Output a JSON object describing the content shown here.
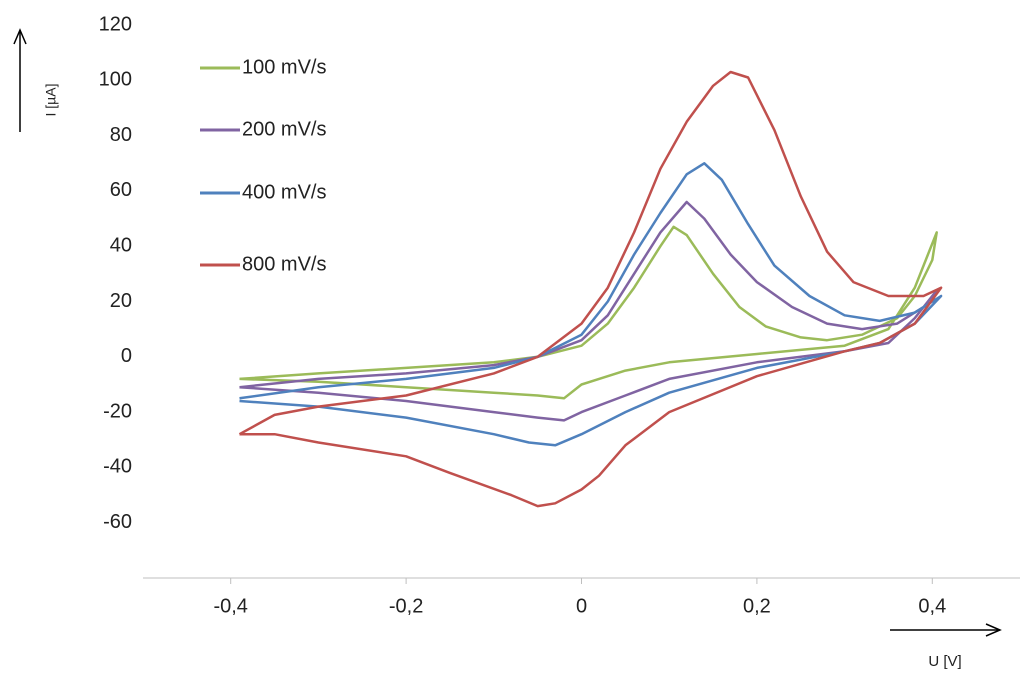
{
  "chart_data": {
    "type": "line",
    "x_label": "U [V]",
    "y_label": "I [µA]",
    "xlim": [
      -0.5,
      0.5
    ],
    "xticks": [
      {
        "value": -0.4,
        "label": "-0,4"
      },
      {
        "value": -0.2,
        "label": "-0,2"
      },
      0,
      {
        "value": 0.2,
        "label": "0,2"
      },
      {
        "value": 0.4,
        "label": "0,4"
      }
    ],
    "ylim": [
      -80,
      120
    ],
    "yticks": [
      -60,
      -40,
      -20,
      0,
      20,
      40,
      60,
      80,
      100,
      120
    ],
    "legend": "upper left",
    "series": [
      {
        "name": "100 mV/s",
        "color": "#9bbb59",
        "x": [
          -0.39,
          -0.3,
          -0.2,
          -0.1,
          -0.05,
          0,
          0.03,
          0.06,
          0.09,
          0.105,
          0.12,
          0.15,
          0.18,
          0.21,
          0.25,
          0.28,
          0.32,
          0.36,
          0.38,
          0.4,
          0.405,
          0.38,
          0.35,
          0.3,
          0.2,
          0.1,
          0.05,
          0,
          -0.02,
          -0.05,
          -0.1,
          -0.2,
          -0.3,
          -0.39
        ],
        "values": [
          -8,
          -6,
          -4,
          -2,
          0,
          4,
          12,
          25,
          40,
          47,
          44,
          30,
          18,
          11,
          7,
          6,
          8,
          14,
          22,
          35,
          45,
          25,
          10,
          4,
          1,
          -2,
          -5,
          -10,
          -15,
          -14,
          -13,
          -11,
          -9,
          -8
        ]
      },
      {
        "name": "200 mV/s",
        "color": "#8064a2",
        "x": [
          -0.39,
          -0.3,
          -0.2,
          -0.1,
          -0.05,
          0,
          0.03,
          0.06,
          0.09,
          0.12,
          0.14,
          0.17,
          0.2,
          0.24,
          0.28,
          0.32,
          0.36,
          0.4,
          0.405,
          0.38,
          0.35,
          0.3,
          0.2,
          0.1,
          0.05,
          0,
          -0.02,
          -0.05,
          -0.1,
          -0.2,
          -0.3,
          -0.39
        ],
        "values": [
          -11,
          -8,
          -6,
          -3,
          0,
          6,
          15,
          30,
          45,
          56,
          50,
          37,
          27,
          18,
          12,
          10,
          12,
          20,
          24,
          14,
          5,
          2,
          -2,
          -8,
          -14,
          -20,
          -23,
          -22,
          -20,
          -16,
          -13,
          -11
        ]
      },
      {
        "name": "400 mV/s",
        "color": "#4f81bd",
        "x": [
          -0.39,
          -0.3,
          -0.2,
          -0.1,
          -0.05,
          0,
          0.03,
          0.06,
          0.09,
          0.12,
          0.14,
          0.16,
          0.19,
          0.22,
          0.26,
          0.3,
          0.34,
          0.38,
          0.41,
          0.38,
          0.34,
          0.3,
          0.2,
          0.1,
          0.05,
          0,
          -0.03,
          -0.06,
          -0.1,
          -0.2,
          -0.3,
          -0.39
        ],
        "values": [
          -15,
          -11,
          -8,
          -4,
          0,
          8,
          20,
          37,
          52,
          66,
          70,
          64,
          48,
          33,
          22,
          15,
          13,
          16,
          22,
          12,
          5,
          2,
          -4,
          -13,
          -20,
          -28,
          -32,
          -31,
          -28,
          -22,
          -18,
          -16
        ]
      },
      {
        "name": "800 mV/s",
        "color": "#c0504d",
        "x": [
          -0.39,
          -0.35,
          -0.3,
          -0.2,
          -0.1,
          -0.05,
          0,
          0.03,
          0.06,
          0.09,
          0.12,
          0.15,
          0.17,
          0.19,
          0.22,
          0.25,
          0.28,
          0.31,
          0.35,
          0.39,
          0.41,
          0.38,
          0.34,
          0.3,
          0.2,
          0.1,
          0.05,
          0.02,
          0,
          -0.03,
          -0.05,
          -0.08,
          -0.15,
          -0.2,
          -0.3,
          -0.35,
          -0.39
        ],
        "values": [
          -28,
          -21,
          -18,
          -14,
          -6,
          0,
          12,
          25,
          45,
          68,
          85,
          98,
          103,
          101,
          82,
          58,
          38,
          27,
          22,
          22,
          25,
          12,
          5,
          2,
          -7,
          -20,
          -32,
          -43,
          -48,
          -53,
          -54,
          -50,
          -42,
          -36,
          -31,
          -28,
          -28
        ]
      }
    ]
  }
}
